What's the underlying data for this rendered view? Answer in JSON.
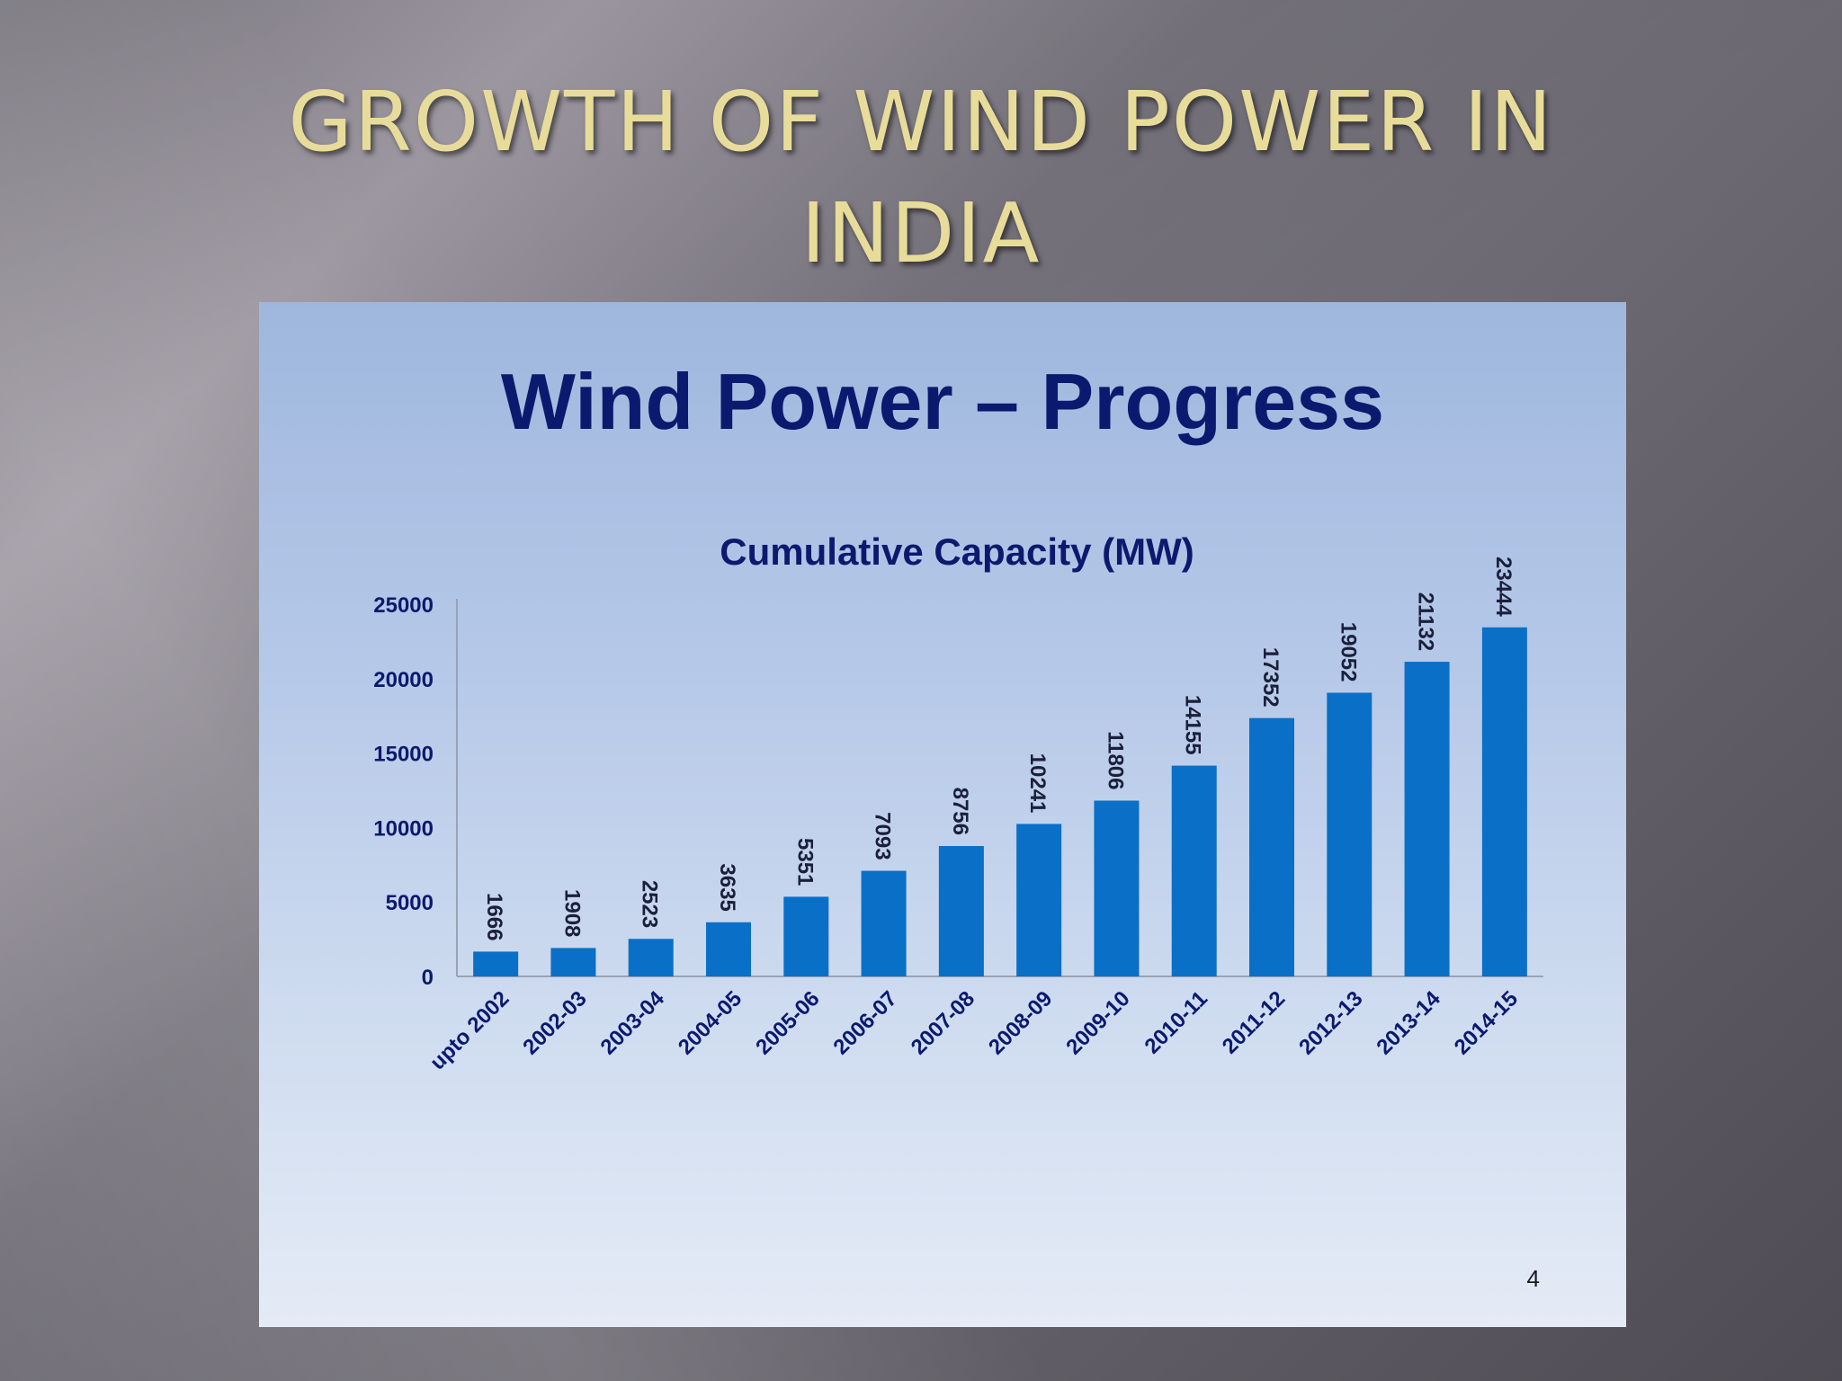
{
  "slide": {
    "title_line1": "GROWTH OF WIND POWER IN",
    "title_line2": "INDIA",
    "panel_title": "Wind Power – Progress",
    "page_number": "4"
  },
  "colors": {
    "bar": "#0a6fc6",
    "title_gold": "#e8dc9a",
    "navy": "#0b1a6e"
  },
  "chart_data": {
    "type": "bar",
    "title": "Cumulative Capacity (MW)",
    "xlabel": "",
    "ylabel": "",
    "ylim": [
      0,
      25000
    ],
    "yticks": [
      0,
      5000,
      10000,
      15000,
      20000,
      25000
    ],
    "grid": false,
    "legend": "none",
    "categories": [
      "upto 2002",
      "2002-03",
      "2003-04",
      "2004-05",
      "2005-06",
      "2006-07",
      "2007-08",
      "2008-09",
      "2009-10",
      "2010-11",
      "2011-12",
      "2012-13",
      "2013-14",
      "2014-15"
    ],
    "values": [
      1666,
      1908,
      2523,
      3635,
      5351,
      7093,
      8756,
      10241,
      11806,
      14155,
      17352,
      19052,
      21132,
      23444
    ]
  }
}
